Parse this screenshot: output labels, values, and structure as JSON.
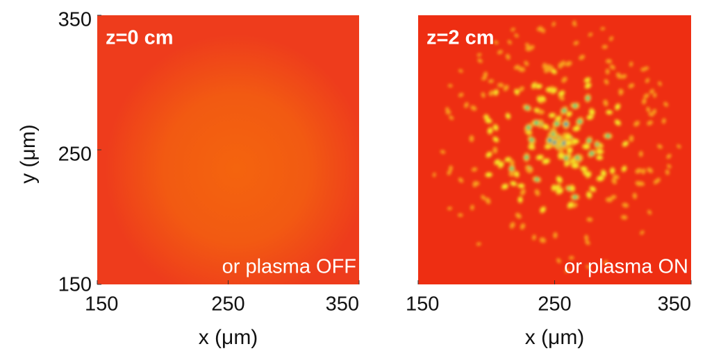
{
  "chart_data": [
    {
      "type": "heatmap",
      "annotation": "z=0 cm",
      "caption": "or plasma OFF",
      "x_label": "x (μm)",
      "y_label": "y (μm)",
      "xlim": [
        150,
        350
      ],
      "ylim": [
        150,
        350
      ],
      "xticks": [
        150,
        250,
        350
      ],
      "yticks": [
        150,
        250,
        350
      ]
    },
    {
      "type": "heatmap",
      "annotation": "z=2 cm",
      "caption": "or plasma ON",
      "x_label": "x (μm)",
      "xlim": [
        150,
        350
      ],
      "xticks": [
        150,
        250,
        350
      ]
    }
  ]
}
